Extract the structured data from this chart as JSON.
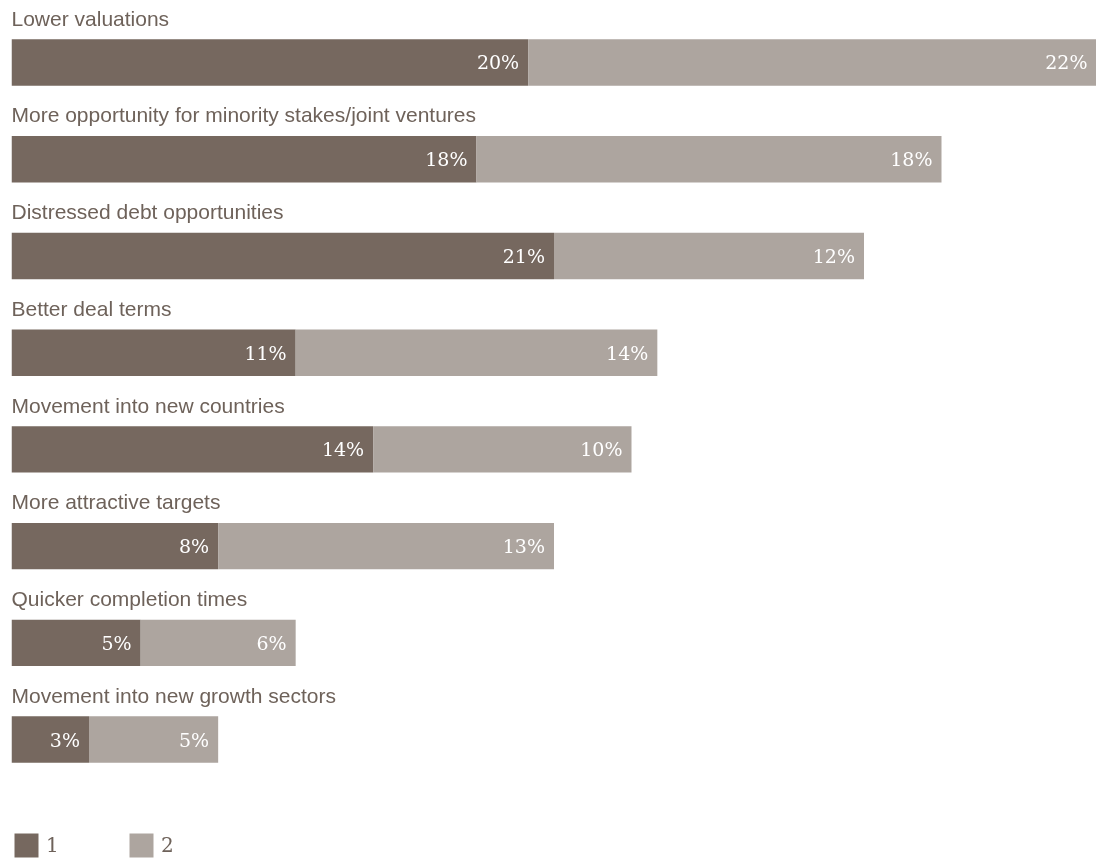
{
  "chart_data": {
    "type": "bar",
    "orientation": "horizontal",
    "stacked": true,
    "categories": [
      "Lower valuations",
      "More opportunity for minority stakes/joint ventures",
      "Distressed debt opportunities",
      "Better deal terms",
      "Movement into new countries",
      "More attractive targets",
      "Quicker completion times",
      "Movement into new growth sectors"
    ],
    "xlim": [
      0,
      42
    ],
    "series": [
      {
        "name": "1",
        "color": "#76685f",
        "values": [
          20,
          18,
          21,
          11,
          14,
          8,
          5,
          3
        ],
        "value_labels": [
          "20%",
          "18%",
          "21%",
          "11%",
          "14%",
          "8%",
          "5%",
          "3%"
        ]
      },
      {
        "name": "2",
        "color": "#ada59f",
        "values": [
          22,
          18,
          12,
          14,
          10,
          13,
          6,
          5
        ],
        "value_labels": [
          "22%",
          "18%",
          "12%",
          "14%",
          "10%",
          "13%",
          "6%",
          "5%"
        ]
      }
    ],
    "legend": "bottom left",
    "grid": false
  }
}
